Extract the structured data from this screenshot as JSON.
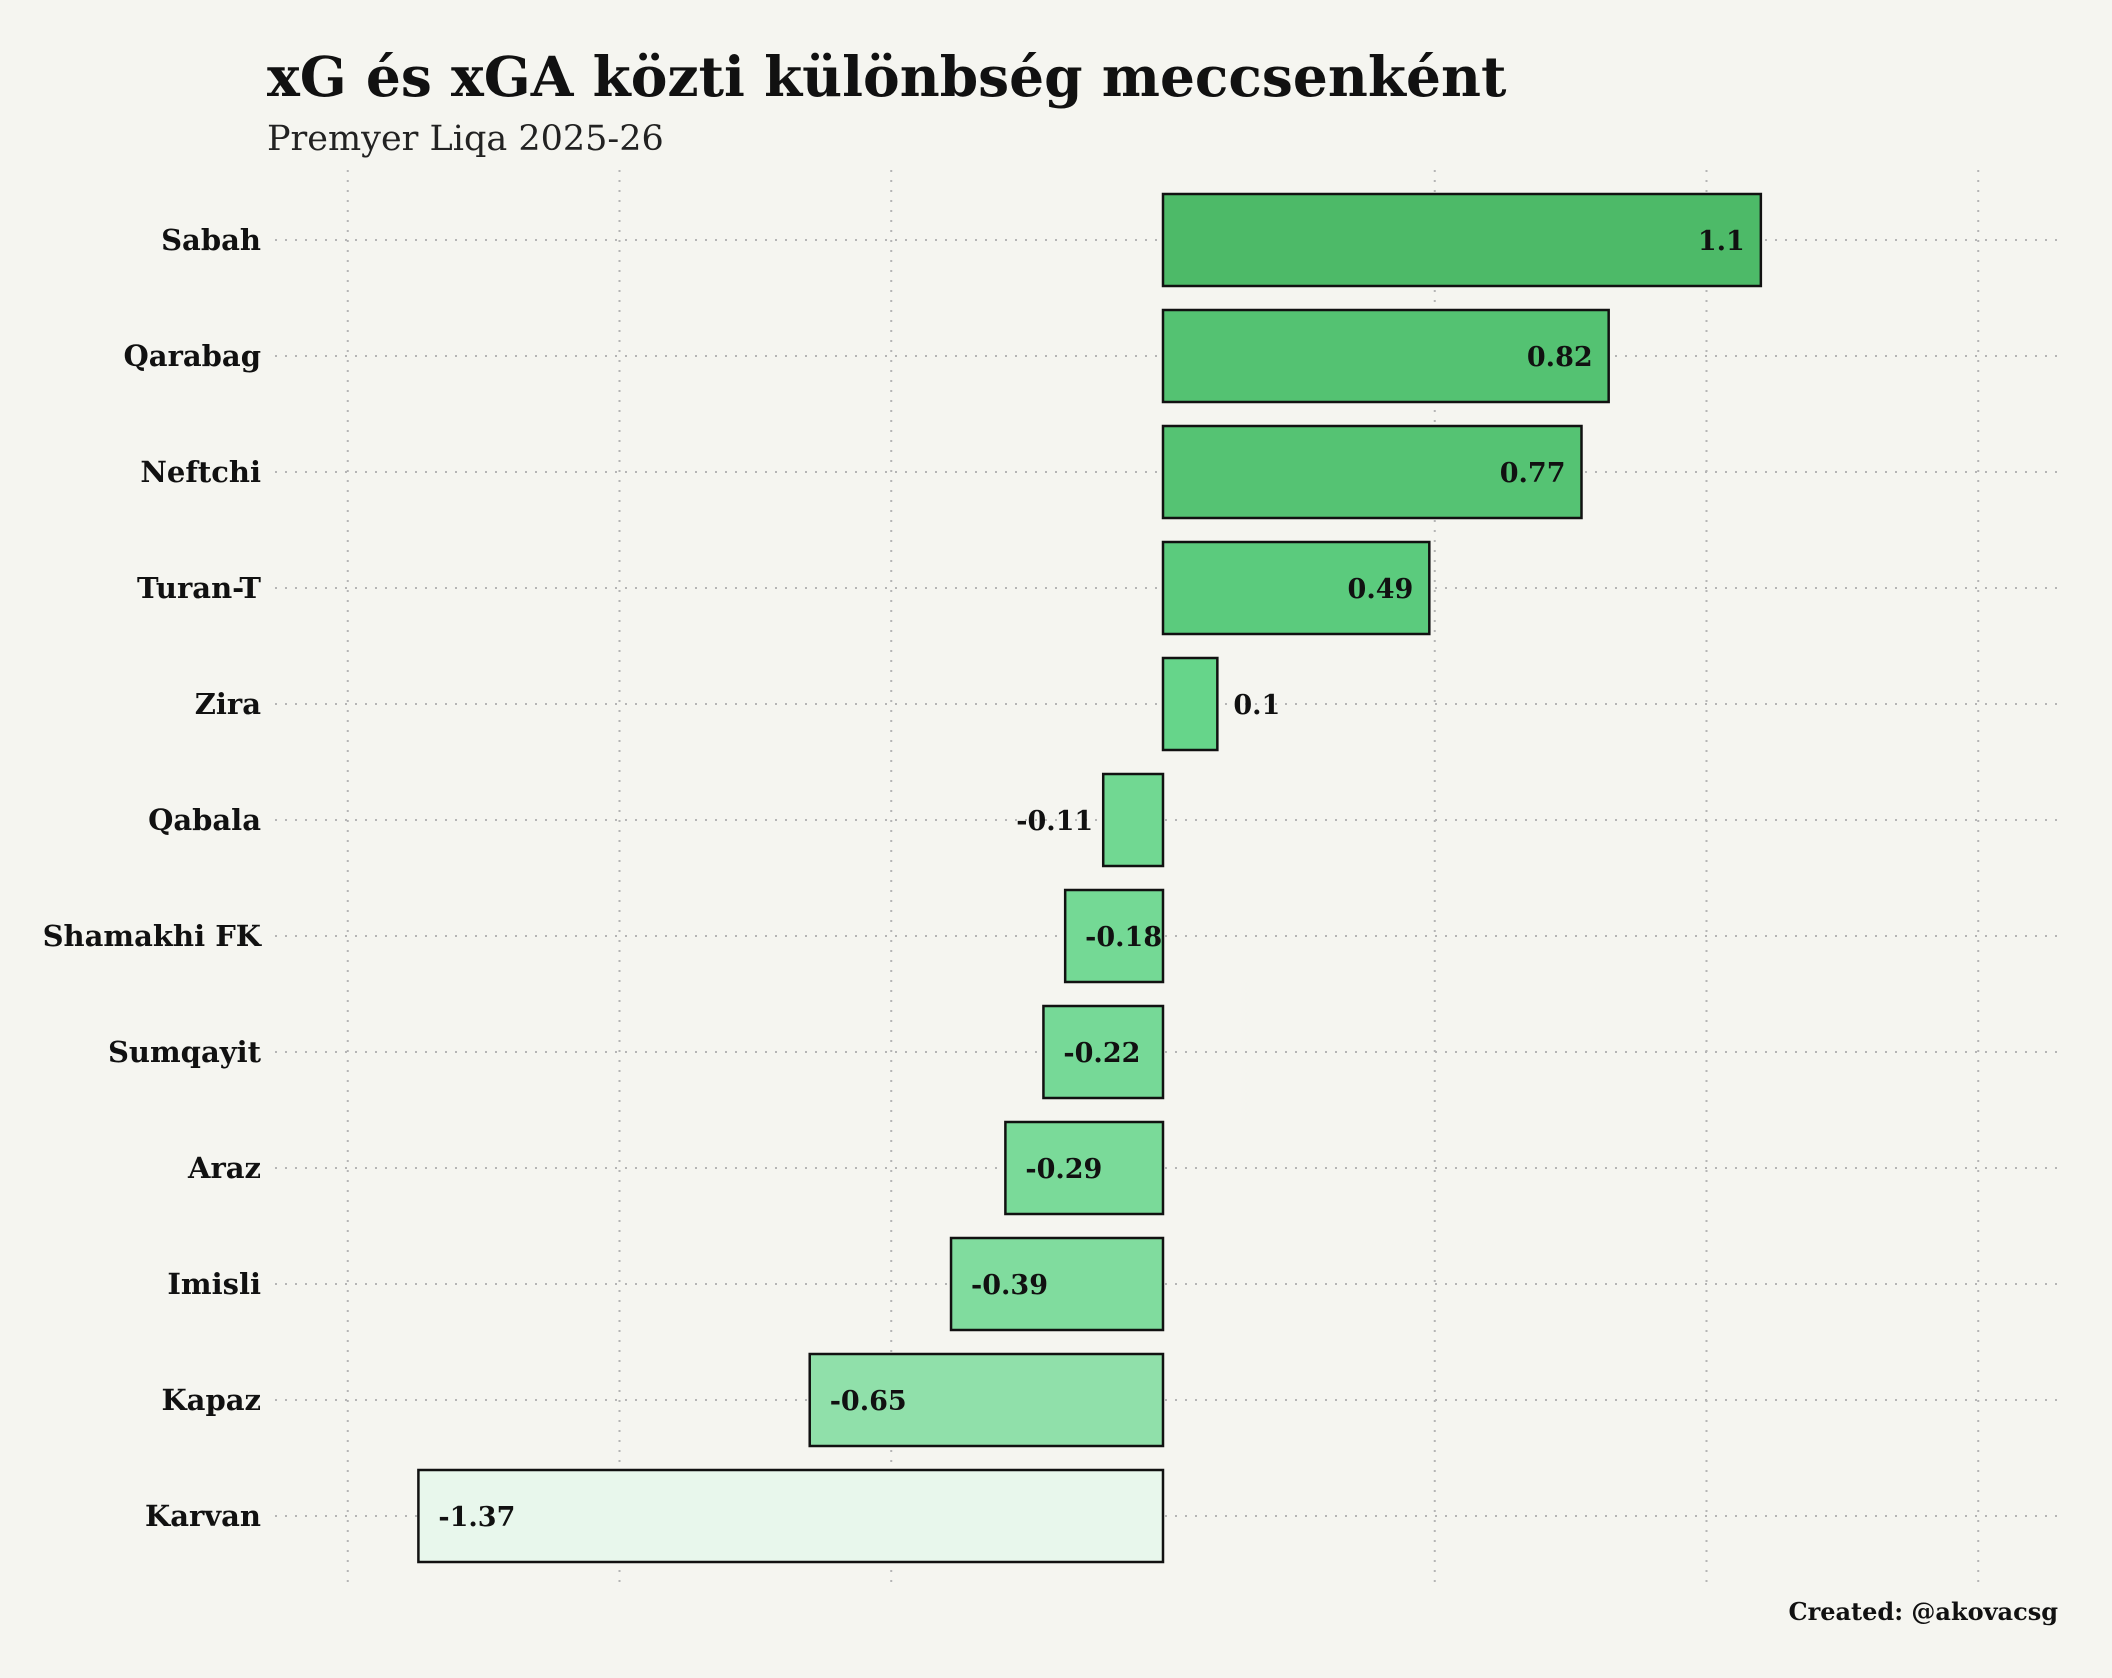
{
  "title": "xG és xGA közti különbség meccsenként",
  "subtitle": "Premyer Liqa 2025-26",
  "credit": "Created: @akovacsg",
  "chart_data": {
    "type": "bar",
    "orientation": "horizontal",
    "title": "xG és xGA közti különbség meccsenként",
    "subtitle": "Premyer Liqa 2025-26",
    "xlabel": "",
    "ylabel": "",
    "xlim": [
      -1.5,
      1.5
    ],
    "grid": true,
    "categories": [
      "Sabah",
      "Qarabag",
      "Neftchi",
      "Turan-T",
      "Zira",
      "Qabala",
      "Shamakhi FK",
      "Sumqayit",
      "Araz",
      "Imisli",
      "Kapaz",
      "Karvan"
    ],
    "values": [
      1.1,
      0.82,
      0.77,
      0.49,
      0.1,
      -0.11,
      -0.18,
      -0.22,
      -0.29,
      -0.39,
      -0.65,
      -1.37
    ],
    "labels": [
      "1.1",
      "0.82",
      "0.77",
      "0.49",
      "0.1",
      "-0.11",
      "-0.18",
      "-0.22",
      "-0.29",
      "-0.39",
      "-0.65",
      "-1.37"
    ],
    "colors": {
      "high": "#4dba68",
      "mid": "#63d488",
      "low": "#e8f7ec",
      "outline": "#111111",
      "background": "#f5f5f0",
      "grid": "#b5b5b5"
    }
  }
}
